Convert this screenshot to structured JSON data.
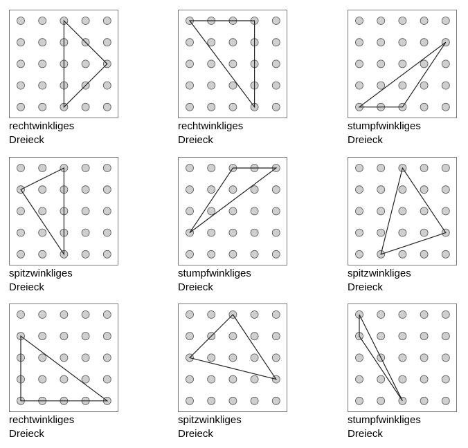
{
  "grid": {
    "size": 5,
    "dot_fill": "#cfcfcf",
    "dot_stroke": "#555555",
    "line_color": "#222222"
  },
  "boards": [
    {
      "type": "rechtwinkliges",
      "noun": "Dreieck",
      "vertices": [
        [
          2,
          0
        ],
        [
          4,
          2
        ],
        [
          2,
          4
        ]
      ]
    },
    {
      "type": "rechtwinkliges",
      "noun": "Dreieck",
      "vertices": [
        [
          0,
          0
        ],
        [
          3,
          0
        ],
        [
          3,
          4
        ]
      ]
    },
    {
      "type": "stumpfwinkliges",
      "noun": "Dreieck",
      "vertices": [
        [
          0,
          4
        ],
        [
          2,
          4
        ],
        [
          4,
          1
        ]
      ]
    },
    {
      "type": "spitzwinkliges",
      "noun": "Dreieck",
      "vertices": [
        [
          2,
          0
        ],
        [
          0,
          1
        ],
        [
          2,
          4
        ]
      ]
    },
    {
      "type": "stumpfwinkliges",
      "noun": "Dreieck",
      "vertices": [
        [
          2,
          0
        ],
        [
          4,
          0
        ],
        [
          0,
          3
        ]
      ]
    },
    {
      "type": "spitzwinkliges",
      "noun": "Dreieck",
      "vertices": [
        [
          2,
          0
        ],
        [
          4,
          3
        ],
        [
          1,
          4
        ]
      ]
    },
    {
      "type": "rechtwinkliges",
      "noun": "Dreieck",
      "vertices": [
        [
          0,
          1
        ],
        [
          0,
          4
        ],
        [
          4,
          4
        ]
      ]
    },
    {
      "type": "spitzwinkliges",
      "noun": "Dreieck",
      "vertices": [
        [
          2,
          0
        ],
        [
          0,
          2
        ],
        [
          4,
          3
        ]
      ]
    },
    {
      "type": "stumpfwinkliges",
      "noun": "Dreieck",
      "vertices": [
        [
          0,
          0
        ],
        [
          0,
          1
        ],
        [
          2,
          4
        ]
      ]
    }
  ]
}
